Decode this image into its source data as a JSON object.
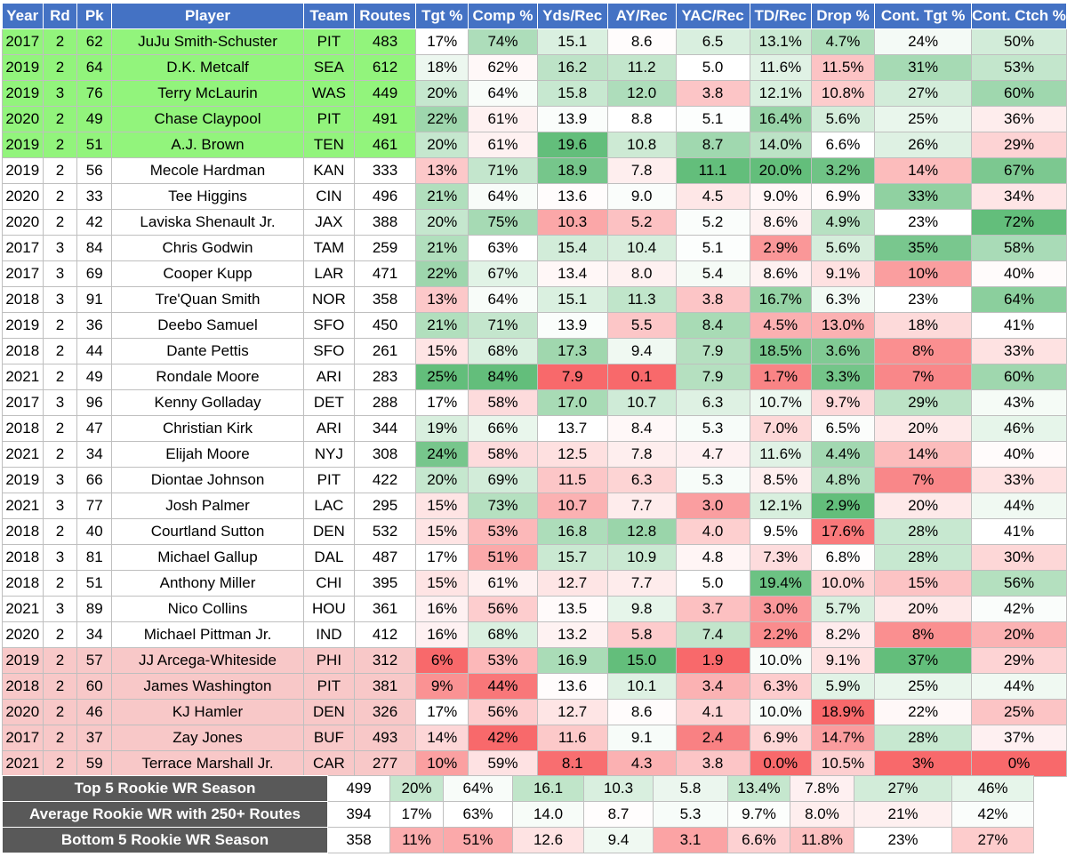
{
  "columns": [
    "Year",
    "Rd",
    "Pk",
    "Player",
    "Team",
    "Routes",
    "Tgt %",
    "Comp %",
    "Yds/Rec",
    "AY/Rec",
    "YAC/Rec",
    "TD/Rec",
    "Drop %",
    "Cont. Tgt %",
    "Cont. Ctch %"
  ],
  "rows": [
    {
      "group": "top",
      "cells": [
        "2017",
        "2",
        "62",
        "JuJu Smith-Schuster",
        "PIT",
        "483",
        "17%",
        "74%",
        "15.1",
        "8.6",
        "6.5",
        "13.1%",
        "4.7%",
        "24%",
        "50%"
      ]
    },
    {
      "group": "top",
      "cells": [
        "2019",
        "2",
        "64",
        "D.K. Metcalf",
        "SEA",
        "612",
        "18%",
        "62%",
        "16.2",
        "11.2",
        "5.0",
        "11.6%",
        "11.5%",
        "31%",
        "53%"
      ]
    },
    {
      "group": "top",
      "cells": [
        "2019",
        "3",
        "76",
        "Terry McLaurin",
        "WAS",
        "449",
        "20%",
        "64%",
        "15.8",
        "12.0",
        "3.8",
        "12.1%",
        "10.8%",
        "27%",
        "60%"
      ]
    },
    {
      "group": "top",
      "cells": [
        "2020",
        "2",
        "49",
        "Chase Claypool",
        "PIT",
        "491",
        "22%",
        "61%",
        "13.9",
        "8.8",
        "5.1",
        "16.4%",
        "5.6%",
        "25%",
        "36%"
      ]
    },
    {
      "group": "top",
      "cells": [
        "2019",
        "2",
        "51",
        "A.J. Brown",
        "TEN",
        "461",
        "20%",
        "61%",
        "19.6",
        "10.8",
        "8.7",
        "14.0%",
        "6.6%",
        "26%",
        "29%"
      ]
    },
    {
      "group": "mid",
      "cells": [
        "2019",
        "2",
        "56",
        "Mecole Hardman",
        "KAN",
        "333",
        "13%",
        "71%",
        "18.9",
        "7.8",
        "11.1",
        "20.0%",
        "3.2%",
        "14%",
        "67%"
      ]
    },
    {
      "group": "mid",
      "cells": [
        "2020",
        "2",
        "33",
        "Tee Higgins",
        "CIN",
        "496",
        "21%",
        "64%",
        "13.6",
        "9.0",
        "4.5",
        "9.0%",
        "6.9%",
        "33%",
        "34%"
      ]
    },
    {
      "group": "mid",
      "cells": [
        "2020",
        "2",
        "42",
        "Laviska Shenault Jr.",
        "JAX",
        "388",
        "20%",
        "75%",
        "10.3",
        "5.2",
        "5.2",
        "8.6%",
        "4.9%",
        "23%",
        "72%"
      ]
    },
    {
      "group": "mid",
      "cells": [
        "2017",
        "3",
        "84",
        "Chris Godwin",
        "TAM",
        "259",
        "21%",
        "63%",
        "15.4",
        "10.4",
        "5.1",
        "2.9%",
        "5.6%",
        "35%",
        "58%"
      ]
    },
    {
      "group": "mid",
      "cells": [
        "2017",
        "3",
        "69",
        "Cooper Kupp",
        "LAR",
        "471",
        "22%",
        "67%",
        "13.4",
        "8.0",
        "5.4",
        "8.6%",
        "9.1%",
        "10%",
        "40%"
      ]
    },
    {
      "group": "mid",
      "cells": [
        "2018",
        "3",
        "91",
        "Tre'Quan Smith",
        "NOR",
        "358",
        "13%",
        "64%",
        "15.1",
        "11.3",
        "3.8",
        "16.7%",
        "6.3%",
        "23%",
        "64%"
      ]
    },
    {
      "group": "mid",
      "cells": [
        "2019",
        "2",
        "36",
        "Deebo Samuel",
        "SFO",
        "450",
        "21%",
        "71%",
        "13.9",
        "5.5",
        "8.4",
        "4.5%",
        "13.0%",
        "18%",
        "41%"
      ]
    },
    {
      "group": "mid",
      "cells": [
        "2018",
        "2",
        "44",
        "Dante Pettis",
        "SFO",
        "261",
        "15%",
        "68%",
        "17.3",
        "9.4",
        "7.9",
        "18.5%",
        "3.6%",
        "8%",
        "33%"
      ]
    },
    {
      "group": "mid",
      "cells": [
        "2021",
        "2",
        "49",
        "Rondale Moore",
        "ARI",
        "283",
        "25%",
        "84%",
        "7.9",
        "0.1",
        "7.9",
        "1.7%",
        "3.3%",
        "7%",
        "60%"
      ]
    },
    {
      "group": "mid",
      "cells": [
        "2017",
        "3",
        "96",
        "Kenny Golladay",
        "DET",
        "288",
        "17%",
        "58%",
        "17.0",
        "10.7",
        "6.3",
        "10.7%",
        "9.7%",
        "29%",
        "43%"
      ]
    },
    {
      "group": "mid",
      "cells": [
        "2018",
        "2",
        "47",
        "Christian Kirk",
        "ARI",
        "344",
        "19%",
        "66%",
        "13.7",
        "8.4",
        "5.3",
        "7.0%",
        "6.5%",
        "20%",
        "46%"
      ]
    },
    {
      "group": "mid",
      "cells": [
        "2021",
        "2",
        "34",
        "Elijah Moore",
        "NYJ",
        "308",
        "24%",
        "58%",
        "12.5",
        "7.8",
        "4.7",
        "11.6%",
        "4.4%",
        "14%",
        "40%"
      ]
    },
    {
      "group": "mid",
      "cells": [
        "2019",
        "3",
        "66",
        "Diontae Johnson",
        "PIT",
        "422",
        "20%",
        "69%",
        "11.5",
        "6.3",
        "5.3",
        "8.5%",
        "4.8%",
        "7%",
        "33%"
      ]
    },
    {
      "group": "mid",
      "cells": [
        "2021",
        "3",
        "77",
        "Josh Palmer",
        "LAC",
        "295",
        "15%",
        "73%",
        "10.7",
        "7.7",
        "3.0",
        "12.1%",
        "2.9%",
        "20%",
        "44%"
      ]
    },
    {
      "group": "mid",
      "cells": [
        "2018",
        "2",
        "40",
        "Courtland Sutton",
        "DEN",
        "532",
        "15%",
        "53%",
        "16.8",
        "12.8",
        "4.0",
        "9.5%",
        "17.6%",
        "28%",
        "41%"
      ]
    },
    {
      "group": "mid",
      "cells": [
        "2018",
        "3",
        "81",
        "Michael Gallup",
        "DAL",
        "487",
        "17%",
        "51%",
        "15.7",
        "10.9",
        "4.8",
        "7.3%",
        "6.8%",
        "28%",
        "30%"
      ]
    },
    {
      "group": "mid",
      "cells": [
        "2018",
        "2",
        "51",
        "Anthony Miller",
        "CHI",
        "395",
        "15%",
        "61%",
        "12.7",
        "7.7",
        "5.0",
        "19.4%",
        "10.0%",
        "15%",
        "56%"
      ]
    },
    {
      "group": "mid",
      "cells": [
        "2021",
        "3",
        "89",
        "Nico Collins",
        "HOU",
        "361",
        "16%",
        "56%",
        "13.5",
        "9.8",
        "3.7",
        "3.0%",
        "5.7%",
        "20%",
        "42%"
      ]
    },
    {
      "group": "mid",
      "cells": [
        "2020",
        "2",
        "34",
        "Michael Pittman Jr.",
        "IND",
        "412",
        "16%",
        "68%",
        "13.2",
        "5.8",
        "7.4",
        "2.2%",
        "8.2%",
        "8%",
        "20%"
      ]
    },
    {
      "group": "bottom",
      "cells": [
        "2019",
        "2",
        "57",
        "JJ Arcega-Whiteside",
        "PHI",
        "312",
        "6%",
        "53%",
        "16.9",
        "15.0",
        "1.9",
        "10.0%",
        "9.1%",
        "37%",
        "29%"
      ]
    },
    {
      "group": "bottom",
      "cells": [
        "2018",
        "2",
        "60",
        "James Washington",
        "PIT",
        "381",
        "9%",
        "44%",
        "13.6",
        "10.1",
        "3.4",
        "6.3%",
        "5.9%",
        "25%",
        "44%"
      ]
    },
    {
      "group": "bottom",
      "cells": [
        "2020",
        "2",
        "46",
        "KJ Hamler",
        "DEN",
        "326",
        "17%",
        "56%",
        "12.7",
        "8.6",
        "4.1",
        "10.0%",
        "18.9%",
        "22%",
        "25%"
      ]
    },
    {
      "group": "bottom",
      "cells": [
        "2017",
        "2",
        "37",
        "Zay Jones",
        "BUF",
        "493",
        "14%",
        "42%",
        "11.6",
        "9.1",
        "2.4",
        "6.9%",
        "14.7%",
        "28%",
        "37%"
      ]
    },
    {
      "group": "bottom",
      "cells": [
        "2021",
        "2",
        "59",
        "Terrace Marshall Jr.",
        "CAR",
        "277",
        "10%",
        "59%",
        "8.1",
        "4.3",
        "3.8",
        "0.0%",
        "10.5%",
        "3%",
        "0%"
      ]
    }
  ],
  "summary": [
    {
      "label": "Top 5 Rookie WR Season",
      "cells": [
        "499",
        "20%",
        "64%",
        "16.1",
        "10.3",
        "5.8",
        "13.4%",
        "7.8%",
        "27%",
        "46%"
      ]
    },
    {
      "label": "Average Rookie WR with 250+ Routes",
      "cells": [
        "394",
        "17%",
        "63%",
        "14.0",
        "8.7",
        "5.3",
        "9.7%",
        "8.0%",
        "21%",
        "42%"
      ]
    },
    {
      "label": "Bottom 5 Rookie WR Season",
      "cells": [
        "358",
        "11%",
        "51%",
        "12.6",
        "9.4",
        "3.1",
        "6.6%",
        "11.8%",
        "23%",
        "27%"
      ]
    }
  ],
  "colors": {
    "header_bg": "#4472c4",
    "header_text": "#ffffff",
    "top_group_bg": "#92f47c",
    "bottom_group_bg": "#f8c8c8",
    "summary_label_bg": "#595959",
    "scale_low": "#f8696b",
    "scale_mid": "#ffffff",
    "scale_high": "#63be7b"
  }
}
